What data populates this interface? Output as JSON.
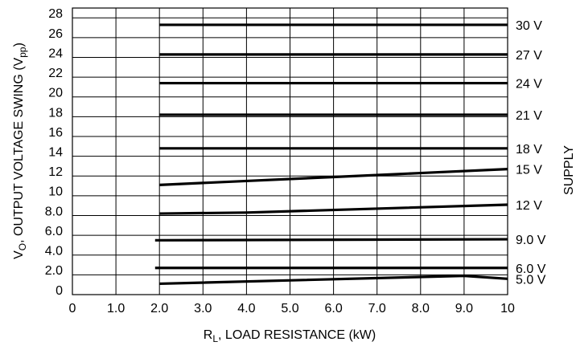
{
  "chart_data": {
    "type": "line",
    "xlabel_main": "R",
    "xlabel_sub": "L",
    "xlabel_rest": ", LOAD RESISTANCE (kW)",
    "ylabel_main": "V",
    "ylabel_sub": "O",
    "ylabel_mid": ", OUTPUT VOLTAGE SWING (V",
    "ylabel_sub2": "pp",
    "ylabel_end": ")",
    "right_label": "SUPPLY",
    "xlim": [
      0,
      10
    ],
    "ylim": [
      -0.5,
      28.5
    ],
    "x_ticks": [
      {
        "value": 0,
        "label": "0"
      },
      {
        "value": 1,
        "label": "1.0"
      },
      {
        "value": 2,
        "label": "2.0"
      },
      {
        "value": 3,
        "label": "3.0"
      },
      {
        "value": 4,
        "label": "4.0"
      },
      {
        "value": 5,
        "label": "5.0"
      },
      {
        "value": 6,
        "label": "6.0"
      },
      {
        "value": 7,
        "label": "7.0"
      },
      {
        "value": 8,
        "label": "8.0"
      },
      {
        "value": 9,
        "label": "9.0"
      },
      {
        "value": 10,
        "label": "10"
      }
    ],
    "y_ticks": [
      {
        "value": 0,
        "label": "0"
      },
      {
        "value": 2,
        "label": "2.0"
      },
      {
        "value": 4,
        "label": "4.0"
      },
      {
        "value": 6,
        "label": "6.0"
      },
      {
        "value": 8,
        "label": "8.0"
      },
      {
        "value": 10,
        "label": "10"
      },
      {
        "value": 12,
        "label": "12"
      },
      {
        "value": 14,
        "label": "14"
      },
      {
        "value": 16,
        "label": "16"
      },
      {
        "value": 18,
        "label": "18"
      },
      {
        "value": 20,
        "label": "20"
      },
      {
        "value": 22,
        "label": "22"
      },
      {
        "value": 24,
        "label": "24"
      },
      {
        "value": 26,
        "label": "26"
      },
      {
        "value": 28,
        "label": "28"
      }
    ],
    "y_gridlines": [
      1.5,
      3.5,
      5.5,
      7.5,
      9.5,
      11.5,
      13.5,
      15.5,
      17.5,
      19.5,
      21.5,
      23.5,
      25.5,
      27.5
    ],
    "x_gridlines": [
      1,
      2,
      3,
      4,
      5,
      6,
      7,
      8,
      9
    ],
    "grid": true,
    "series": [
      {
        "name": "30 V",
        "x": [
          2.0,
          10.0
        ],
        "y": [
          26.8,
          26.8
        ]
      },
      {
        "name": "27 V",
        "x": [
          2.0,
          10.0
        ],
        "y": [
          23.8,
          23.8
        ]
      },
      {
        "name": "24 V",
        "x": [
          2.0,
          10.0
        ],
        "y": [
          20.9,
          20.9
        ]
      },
      {
        "name": "21 V",
        "x": [
          2.0,
          10.0
        ],
        "y": [
          17.7,
          17.7
        ]
      },
      {
        "name": "18 V",
        "x": [
          2.0,
          10.0
        ],
        "y": [
          14.3,
          14.3
        ]
      },
      {
        "name": "15 V",
        "x": [
          2.0,
          4.0,
          6.0,
          8.0,
          10.0
        ],
        "y": [
          10.6,
          11.0,
          11.4,
          11.8,
          12.2
        ]
      },
      {
        "name": "12 V",
        "x": [
          2.0,
          4.0,
          10.0
        ],
        "y": [
          7.7,
          7.8,
          8.6
        ]
      },
      {
        "name": "9.0 V",
        "x": [
          1.9,
          10.0
        ],
        "y": [
          5.0,
          5.1
        ]
      },
      {
        "name": "6.0 V",
        "x": [
          1.9,
          10.0
        ],
        "y": [
          2.2,
          2.2
        ]
      },
      {
        "name": "5.0 V",
        "x": [
          2.0,
          9.0,
          10.0
        ],
        "y": [
          0.6,
          1.4,
          1.1
        ]
      }
    ]
  }
}
